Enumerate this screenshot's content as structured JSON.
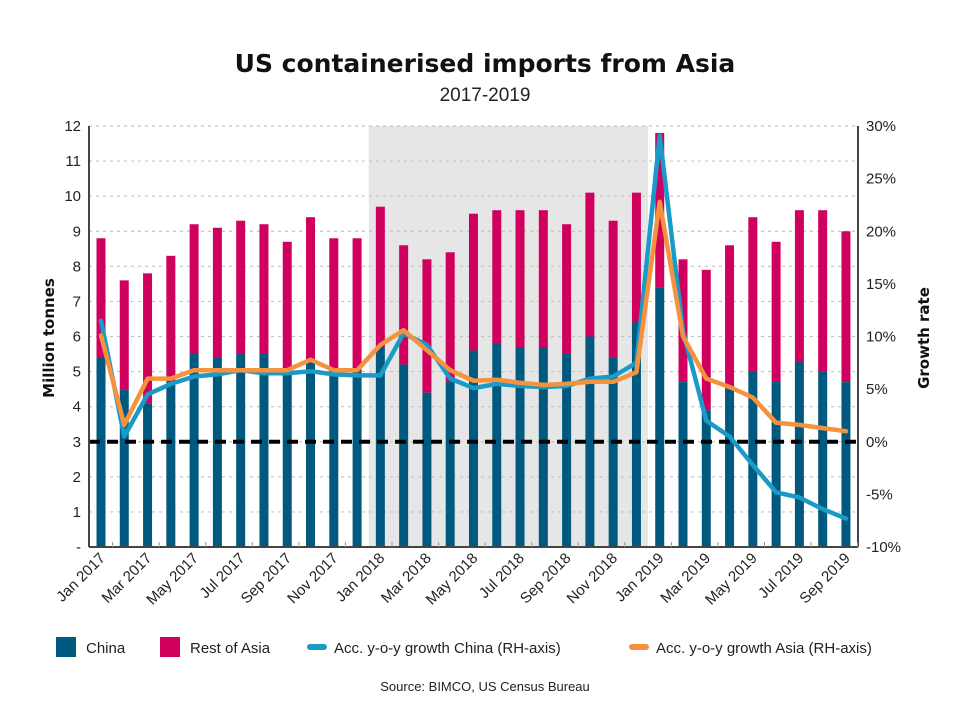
{
  "chart_data": {
    "type": "bar",
    "title": "US containerised imports from Asia",
    "subtitle": "2017-2019",
    "ylabel": "Million tonnes",
    "y2label": "Growth rate",
    "ylim": [
      0,
      12
    ],
    "y2lim": [
      -10,
      30
    ],
    "yticks": [
      "-",
      "1",
      "2",
      "3",
      "4",
      "5",
      "6",
      "7",
      "8",
      "9",
      "10",
      "11",
      "12"
    ],
    "y2ticks": [
      "-10%",
      "-5%",
      "0%",
      "5%",
      "10%",
      "15%",
      "20%",
      "25%",
      "30%"
    ],
    "grid": true,
    "highlight_range": [
      "Jan 2018",
      "Dec 2018"
    ],
    "categories": [
      "Jan 2017",
      "Feb 2017",
      "Mar 2017",
      "Apr 2017",
      "May 2017",
      "Jun 2017",
      "Jul 2017",
      "Aug 2017",
      "Sep 2017",
      "Oct 2017",
      "Nov 2017",
      "Dec 2017",
      "Jan 2018",
      "Feb 2018",
      "Mar 2018",
      "Apr 2018",
      "May 2018",
      "Jun 2018",
      "Jul 2018",
      "Aug 2018",
      "Sep 2018",
      "Oct 2018",
      "Nov 2018",
      "Dec 2018",
      "Jan 2019",
      "Feb 2019",
      "Mar 2019",
      "Apr 2019",
      "May 2019",
      "Jun 2019",
      "Jul 2019",
      "Aug 2019",
      "Sep 2019"
    ],
    "xtick_labels": [
      "Jan 2017",
      "Mar 2017",
      "May 2017",
      "Jul 2017",
      "Sep 2017",
      "Nov 2017",
      "Jan 2018",
      "Mar 2018",
      "May 2018",
      "Jul 2018",
      "Sep 2018",
      "Nov 2018",
      "Jan 2019",
      "Mar 2019",
      "May 2019",
      "Jul 2019",
      "Sep 2019"
    ],
    "series": [
      {
        "name": "China",
        "type": "bar",
        "axis": "left",
        "color": "#005a7f",
        "values": [
          5.4,
          4.5,
          4.1,
          4.7,
          5.5,
          5.4,
          5.5,
          5.5,
          5.0,
          5.3,
          5.0,
          5.0,
          5.7,
          5.2,
          4.4,
          4.7,
          5.6,
          5.8,
          5.7,
          5.7,
          5.5,
          6.0,
          5.4,
          6.4,
          7.4,
          4.7,
          3.9,
          4.5,
          5.0,
          4.7,
          5.3,
          5.0,
          4.7
        ]
      },
      {
        "name": "Rest of Asia",
        "type": "bar",
        "axis": "left",
        "color": "#d0005e",
        "values": [
          3.4,
          3.1,
          3.7,
          3.6,
          3.7,
          3.7,
          3.8,
          3.7,
          3.7,
          4.1,
          3.8,
          3.8,
          4.0,
          3.4,
          3.8,
          3.7,
          3.9,
          3.8,
          3.9,
          3.9,
          3.7,
          4.1,
          3.9,
          3.7,
          4.4,
          3.5,
          4.0,
          4.1,
          4.4,
          4.0,
          4.3,
          4.6,
          4.3
        ]
      },
      {
        "name": "Acc. y-o-y growth China (RH-axis)",
        "type": "line",
        "axis": "right",
        "color": "#1a9bc7",
        "values": [
          11.5,
          0.5,
          4.5,
          5.5,
          6.2,
          6.4,
          6.8,
          6.5,
          6.5,
          6.7,
          6.4,
          6.3,
          6.3,
          10.3,
          9.2,
          6.0,
          5.1,
          5.5,
          5.3,
          5.2,
          5.3,
          6.0,
          6.2,
          7.5,
          29.1,
          10.5,
          2.0,
          0.5,
          -2.2,
          -4.8,
          -5.3,
          -6.4,
          -7.3
        ]
      },
      {
        "name": "Acc. y-o-y growth Asia (RH-axis)",
        "type": "line",
        "axis": "right",
        "color": "#f5923e",
        "values": [
          10.1,
          1.6,
          6.0,
          6.0,
          6.8,
          6.8,
          6.8,
          6.8,
          6.8,
          7.8,
          6.8,
          6.8,
          9.2,
          10.6,
          8.7,
          6.8,
          5.8,
          5.9,
          5.6,
          5.4,
          5.5,
          5.7,
          5.7,
          6.6,
          22.8,
          10.0,
          6.0,
          5.2,
          4.2,
          1.8,
          1.6,
          1.3,
          1.0
        ]
      }
    ],
    "legend_position": "bottom",
    "source": "Source: BIMCO, US Census Bureau"
  }
}
